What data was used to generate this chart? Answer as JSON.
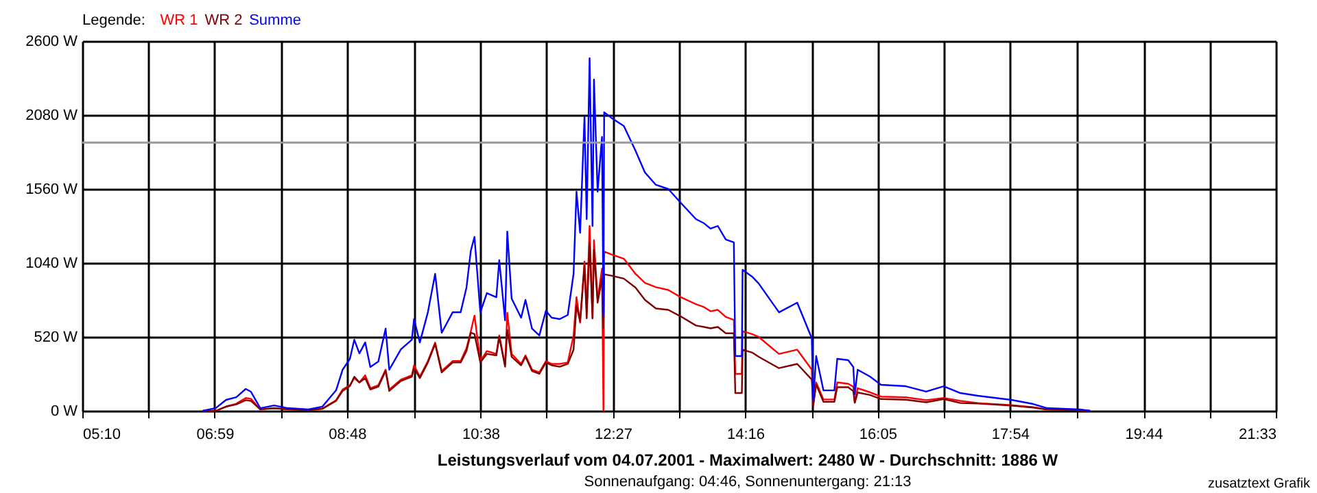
{
  "chart_data": {
    "type": "line",
    "title": "Leistungsverlauf vom 04.07.2001 - Maximalwert: 2480 W - Durchschnitt: 1886 W",
    "subtitle": "Sonnenaufgang: 04:46, Sonnenuntergang: 21:13",
    "legend_title": "Legende:",
    "annotations": [
      "zusatztext Grafik"
    ],
    "legend": "top left",
    "grid": true,
    "line_style": "solid",
    "x": [
      6.82,
      7.0,
      7.14,
      7.28,
      7.41,
      7.48,
      7.61,
      7.8,
      7.99,
      8.27,
      8.46,
      8.65,
      8.74,
      8.84,
      8.9,
      8.97,
      9.05,
      9.12,
      9.23,
      9.33,
      9.38,
      9.54,
      9.69,
      9.72,
      9.8,
      9.91,
      10.01,
      10.1,
      10.25,
      10.36,
      10.44,
      10.5,
      10.55,
      10.63,
      10.72,
      10.85,
      10.89,
      10.97,
      11.0,
      11.06,
      11.19,
      11.25,
      11.34,
      11.44,
      11.53,
      11.61,
      11.72,
      11.83,
      11.91,
      11.95,
      12.0,
      12.06,
      12.09,
      12.13,
      12.17,
      12.19,
      12.24,
      12.3,
      12.32,
      12.33,
      12.43,
      12.6,
      12.76,
      12.89,
      13.04,
      13.21,
      13.38,
      13.59,
      13.7,
      13.79,
      13.89,
      14.0,
      14.11,
      14.13,
      14.22,
      14.23,
      14.36,
      14.45,
      14.73,
      14.98,
      15.18,
      15.2,
      15.24,
      15.34,
      15.49,
      15.53,
      15.68,
      15.75,
      15.77,
      15.81,
      15.98,
      16.13,
      16.47,
      16.75,
      16.99,
      17.22,
      17.46,
      17.92,
      18.22,
      18.41,
      18.86,
      19.0
    ],
    "series": [
      {
        "name": "WR 1",
        "color": "#ff0000",
        "values": [
          0,
          0,
          30,
          50,
          90,
          85,
          10,
          20,
          10,
          5,
          15,
          75,
          150,
          180,
          230,
          200,
          250,
          160,
          180,
          290,
          150,
          220,
          250,
          320,
          240,
          350,
          480,
          280,
          350,
          350,
          440,
          560,
          670,
          350,
          420,
          400,
          530,
          320,
          690,
          400,
          330,
          390,
          290,
          270,
          350,
          330,
          330,
          340,
          530,
          800,
          620,
          1050,
          700,
          1300,
          650,
          1200,
          780,
          1000,
          0,
          1120,
          1100,
          1070,
          963,
          900,
          870,
          850,
          800,
          750,
          730,
          700,
          710,
          660,
          640,
          260,
          260,
          560,
          540,
          520,
          400,
          430,
          290,
          40,
          200,
          80,
          80,
          200,
          190,
          170,
          60,
          160,
          130,
          100,
          95,
          75,
          90,
          70,
          55,
          40,
          25,
          10,
          5,
          0
        ]
      },
      {
        "name": "WR 2",
        "color": "#800000",
        "values": [
          0,
          0,
          30,
          45,
          75,
          70,
          10,
          18,
          10,
          5,
          14,
          70,
          140,
          175,
          240,
          200,
          230,
          150,
          170,
          280,
          140,
          210,
          240,
          300,
          230,
          340,
          470,
          270,
          340,
          340,
          420,
          550,
          540,
          340,
          400,
          390,
          520,
          310,
          570,
          380,
          320,
          380,
          280,
          260,
          340,
          320,
          310,
          330,
          430,
          740,
          630,
          1020,
          650,
          1180,
          650,
          1130,
          760,
          930,
          580,
          960,
          950,
          930,
          867,
          780,
          720,
          710,
          664,
          600,
          590,
          580,
          590,
          545,
          545,
          125,
          125,
          430,
          410,
          380,
          300,
          330,
          220,
          37,
          185,
          64,
          64,
          166,
          166,
          138,
          56,
          129,
          111,
          83,
          78,
          60,
          83,
          55,
          51,
          37,
          23,
          9,
          5,
          0
        ]
      },
      {
        "name": "Summe",
        "color": "#0000ff",
        "values": [
          0,
          20,
          77,
          96,
          154,
          135,
          19,
          38,
          19,
          10,
          29,
          144,
          289,
          366,
          500,
          404,
          481,
          308,
          347,
          578,
          289,
          433,
          500,
          645,
          481,
          693,
          963,
          549,
          693,
          693,
          867,
          1127,
          1223,
          693,
          828,
          799,
          1059,
          636,
          1261,
          790,
          655,
          780,
          578,
          530,
          703,
          655,
          645,
          674,
          963,
          1541,
          1252,
          2070,
          1348,
          2480,
          1300,
          2330,
          1541,
          1926,
          674,
          2100,
          2060,
          2003,
          1830,
          1676,
          1589,
          1560,
          1464,
          1348,
          1319,
          1281,
          1300,
          1204,
          1185,
          385,
          385,
          992,
          944,
          896,
          693,
          761,
          510,
          77,
          385,
          144,
          144,
          366,
          356,
          308,
          116,
          289,
          241,
          183,
          173,
          135,
          173,
          125,
          106,
          77,
          48,
          19,
          10,
          0
        ]
      }
    ],
    "xlim": [
      5.1667,
      21.55
    ],
    "xticks": [
      {
        "value": 5.1667,
        "label": "05:10"
      },
      {
        "value": 6.0769,
        "label": null
      },
      {
        "value": 6.9833,
        "label": "06:59"
      },
      {
        "value": 7.8972,
        "label": null
      },
      {
        "value": 8.8,
        "label": "08:48"
      },
      {
        "value": 9.7176,
        "label": null
      },
      {
        "value": 10.6333,
        "label": "10:38"
      },
      {
        "value": 11.538,
        "label": null
      },
      {
        "value": 12.45,
        "label": "12:27"
      },
      {
        "value": 13.3583,
        "label": null
      },
      {
        "value": 14.2667,
        "label": "14:16"
      },
      {
        "value": 15.1787,
        "label": null
      },
      {
        "value": 16.0833,
        "label": "16:05"
      },
      {
        "value": 16.9991,
        "label": null
      },
      {
        "value": 17.9,
        "label": "17:54"
      },
      {
        "value": 18.8194,
        "label": null
      },
      {
        "value": 19.7333,
        "label": "19:44"
      },
      {
        "value": 20.6398,
        "label": null
      },
      {
        "value": 21.55,
        "label": "21:33"
      }
    ],
    "ylim": [
      0,
      2600
    ],
    "yticks": [
      {
        "value": 0,
        "label": "0 W"
      },
      {
        "value": 520,
        "label": "520 W"
      },
      {
        "value": 1040,
        "label": "1040 W"
      },
      {
        "value": 1560,
        "label": "1560 W"
      },
      {
        "value": 2080,
        "label": "2080 W"
      },
      {
        "value": 2600,
        "label": "2600 W"
      }
    ],
    "ref_lines": [
      {
        "axis": "y",
        "value": 1886,
        "label": null,
        "color": "#999999"
      }
    ]
  }
}
